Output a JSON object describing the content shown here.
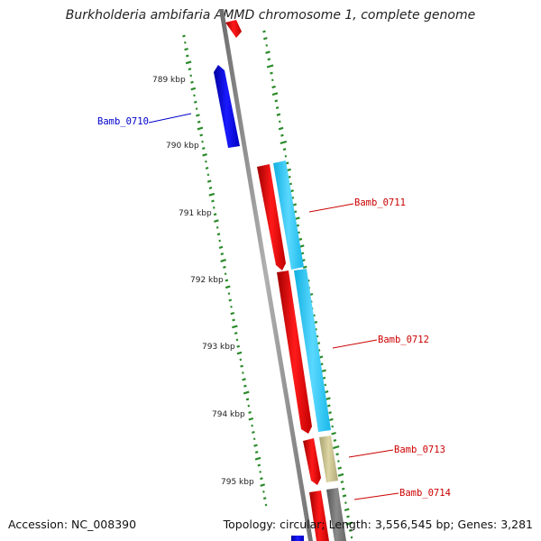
{
  "header": {
    "title": "Burkholderia ambifaria AMMD chromosome 1, complete genome"
  },
  "footer": {
    "accession": "Accession: NC_008390",
    "topology": "Topology: circular; Length: 3,556,545 bp; Genes: 3,281"
  },
  "ticks": [
    "789 kbp",
    "790 kbp",
    "791 kbp",
    "792 kbp",
    "793 kbp",
    "794 kbp",
    "795 kbp"
  ],
  "genes": [
    {
      "name": "Bamb_0710",
      "color": "#0000cc"
    },
    {
      "name": "Bamb_0711",
      "color": "#cc0000"
    },
    {
      "name": "Bamb_0712",
      "color": "#cc0000"
    },
    {
      "name": "Bamb_0713",
      "color": "#cc0000"
    },
    {
      "name": "Bamb_0714",
      "color": "#cc0000"
    }
  ],
  "colors": {
    "backbone": "#808080",
    "reverse_cds": "#0000ee",
    "forward_cds": "#ee0000",
    "homolog_cyan": "#22c8f0",
    "homolog_khaki": "#c8c088",
    "homolog_gray": "#777777",
    "gc_dash": "#2a8a2a"
  }
}
